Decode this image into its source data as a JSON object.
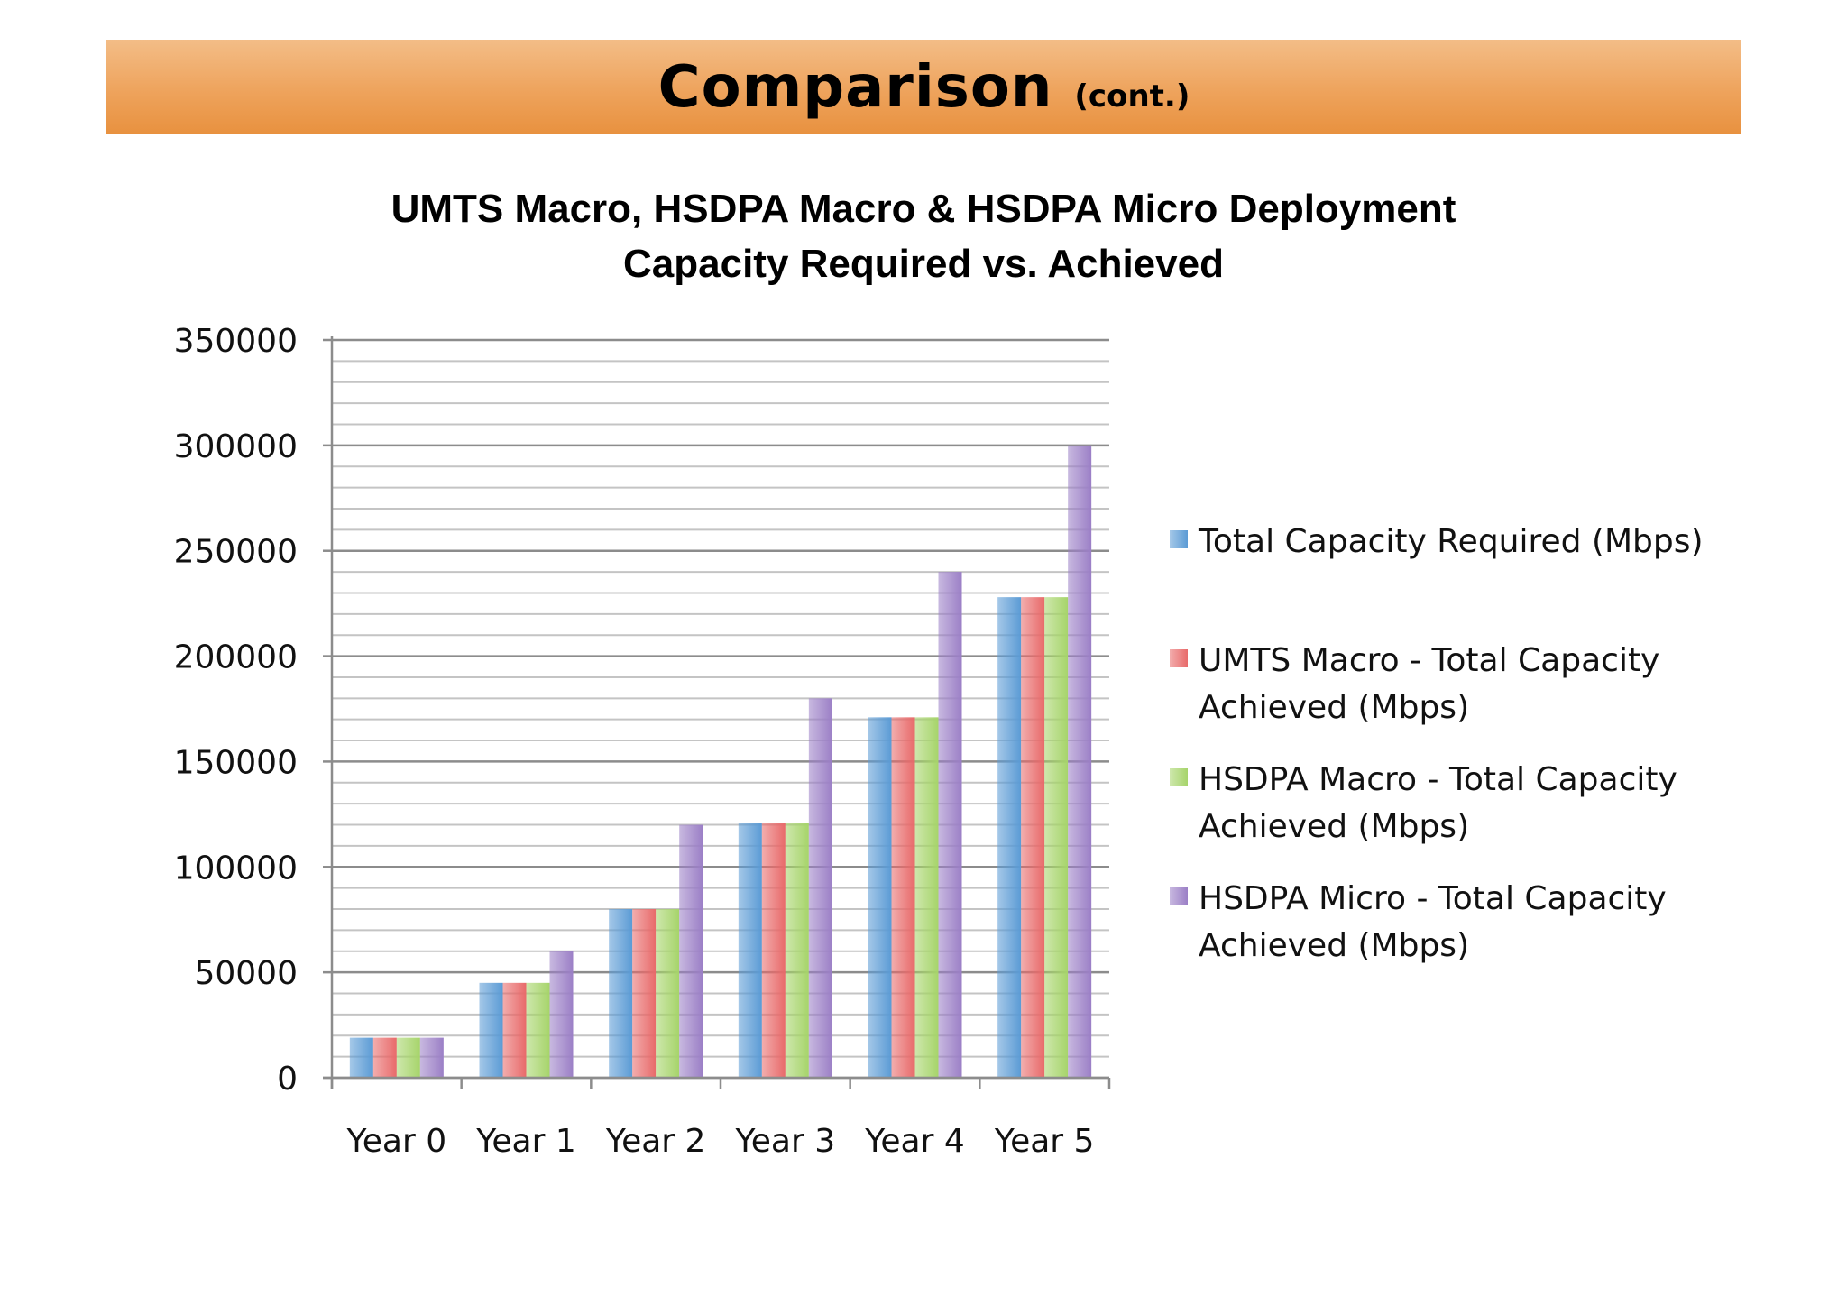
{
  "header": {
    "title": "Comparison",
    "subtitle": "(cont.)"
  },
  "colors": {
    "banner": "#eea35c",
    "series": [
      "#5b9bd5",
      "#e86a6a",
      "#a6d46a",
      "#9b7fc6"
    ]
  },
  "chart_data": {
    "type": "bar",
    "title_lines": [
      "UMTS Macro, HSDPA Macro & HSDPA Micro Deployment",
      "Capacity Required vs. Achieved"
    ],
    "categories": [
      "Year 0",
      "Year 1",
      "Year 2",
      "Year 3",
      "Year 4",
      "Year 5"
    ],
    "series": [
      {
        "name": "Total Capacity Required (Mbps)",
        "legend_lines": [
          "Total Capacity Required (Mbps)"
        ],
        "values": [
          19000,
          45000,
          80000,
          121000,
          171000,
          228000
        ]
      },
      {
        "name": "UMTS Macro - Total Capacity Achieved (Mbps)",
        "legend_lines": [
          "UMTS Macro - Total Capacity",
          "Achieved (Mbps)"
        ],
        "values": [
          19000,
          45000,
          80000,
          121000,
          171000,
          228000
        ]
      },
      {
        "name": "HSDPA Macro - Total Capacity Achieved (Mbps)",
        "legend_lines": [
          "HSDPA Macro - Total Capacity",
          "Achieved (Mbps)"
        ],
        "values": [
          19000,
          45000,
          80000,
          121000,
          171000,
          228000
        ]
      },
      {
        "name": "HSDPA Micro - Total Capacity Achieved (Mbps)",
        "legend_lines": [
          "HSDPA Micro - Total Capacity",
          "Achieved (Mbps)"
        ],
        "values": [
          19000,
          60000,
          120000,
          180000,
          240000,
          300000
        ]
      }
    ],
    "yticks": [
      "0",
      "50000",
      "100000",
      "150000",
      "200000",
      "250000",
      "300000",
      "350000"
    ],
    "ylim": [
      0,
      350000
    ],
    "minor_step": 10000,
    "xlabel": "",
    "ylabel": "",
    "grid": true,
    "legend_position": "right"
  }
}
